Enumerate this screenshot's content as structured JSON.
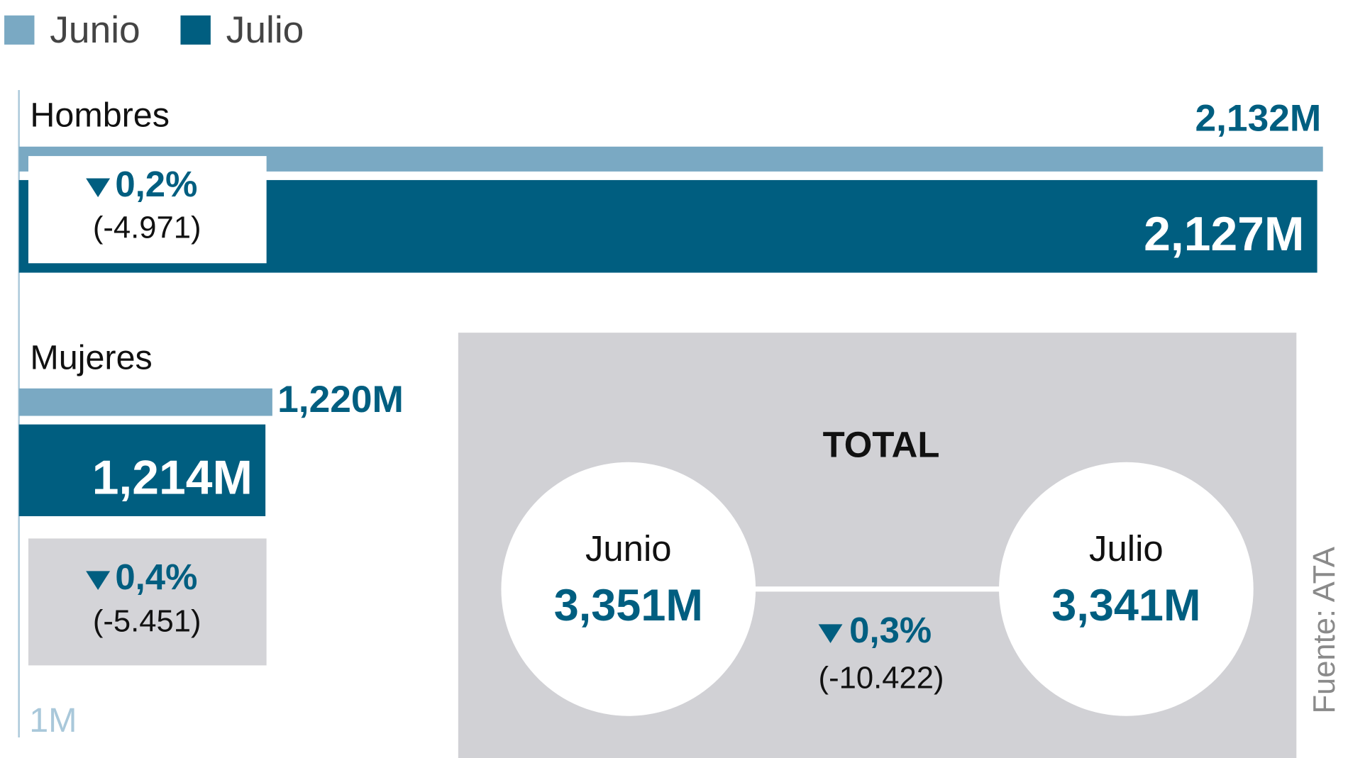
{
  "chart_data": {
    "type": "bar",
    "orientation": "horizontal",
    "categories": [
      "Hombres",
      "Mujeres"
    ],
    "series": [
      {
        "name": "Junio",
        "color": "#7aa9c3",
        "values": [
          2.132,
          1.22
        ],
        "value_labels": [
          "2,132M",
          "1,220M"
        ]
      },
      {
        "name": "Julio",
        "color": "#005e80",
        "values": [
          2.127,
          1.214
        ],
        "value_labels": [
          "2,127M",
          "1,214M"
        ]
      }
    ],
    "xlim": [
      1,
      2.15
    ],
    "xticks": [
      {
        "value": 1,
        "label": "1M"
      }
    ],
    "changes": [
      {
        "percent": "0,2%",
        "diff": "(-4.971)"
      },
      {
        "percent": "0,4%",
        "diff": "(-5.451)"
      }
    ],
    "total": {
      "title": "TOTAL",
      "items": [
        {
          "name": "Junio",
          "label": "3,351M"
        },
        {
          "name": "Julio",
          "label": "3,341M"
        }
      ],
      "percent": "0,3%",
      "diff": "(-10.422)"
    },
    "source": "Fuente: ATA"
  }
}
